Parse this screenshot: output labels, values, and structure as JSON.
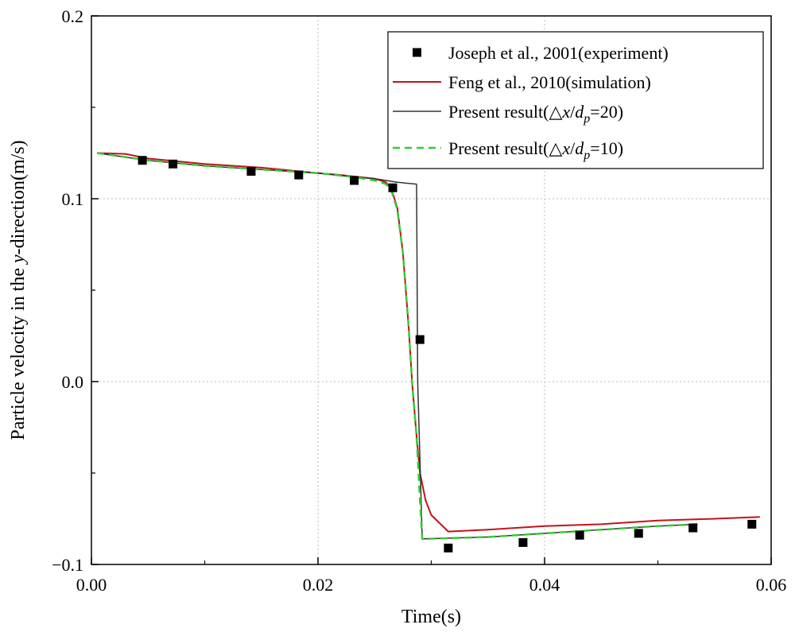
{
  "chart_data": {
    "type": "line",
    "title": "",
    "xlabel": "Time(s)",
    "ylabel": {
      "prefix": "Particle velocity in the ",
      "italic": "y",
      "suffix": "-direction(m/s)"
    },
    "xlim": [
      0.0,
      0.06
    ],
    "ylim": [
      -0.1,
      0.2
    ],
    "xticks": [
      0.0,
      0.02,
      0.04,
      0.06
    ],
    "xtick_labels": [
      "0.00",
      "0.02",
      "0.04",
      "0.06"
    ],
    "yticks": [
      -0.1,
      0.0,
      0.1,
      0.2
    ],
    "ytick_labels": [
      "−0.1",
      "0.0",
      "0.1",
      "0.2"
    ],
    "grid": true,
    "legend_position": "top-right",
    "series": [
      {
        "name": "Joseph et al., 2001(experiment)",
        "legend": {
          "text": "Joseph et al., 2001(experiment)"
        },
        "style": "marker-square",
        "color": "#000000",
        "x": [
          0.0045,
          0.0072,
          0.0141,
          0.0183,
          0.0232,
          0.0266,
          0.029,
          0.0315,
          0.0381,
          0.0431,
          0.0483,
          0.0531,
          0.0583
        ],
        "y": [
          0.121,
          0.119,
          0.115,
          0.113,
          0.11,
          0.106,
          0.023,
          -0.091,
          -0.088,
          -0.084,
          -0.083,
          -0.08,
          -0.078
        ]
      },
      {
        "name": "Feng et al., 2010(simulation)",
        "legend": {
          "text": "Feng et al., 2010(simulation)"
        },
        "style": "line-solid",
        "color": "#c0141c",
        "x": [
          0.0005,
          0.003,
          0.005,
          0.01,
          0.015,
          0.02,
          0.022,
          0.025,
          0.026,
          0.0265,
          0.027,
          0.0275,
          0.028,
          0.0283,
          0.0287,
          0.029,
          0.0295,
          0.03,
          0.0315,
          0.035,
          0.04,
          0.045,
          0.05,
          0.055,
          0.059
        ],
        "y": [
          0.125,
          0.1245,
          0.122,
          0.119,
          0.117,
          0.114,
          0.113,
          0.111,
          0.109,
          0.105,
          0.095,
          0.07,
          0.03,
          0.0,
          -0.03,
          -0.05,
          -0.065,
          -0.073,
          -0.082,
          -0.081,
          -0.079,
          -0.078,
          -0.076,
          -0.075,
          -0.074
        ]
      },
      {
        "name": "Present result(△x/dp=20)",
        "legend": {
          "prefix": "Present result(△",
          "x": "x",
          "slash": "/",
          "d": "d",
          "sub": "p",
          "suffix": "=20)"
        },
        "style": "line-solid",
        "color": "#333333",
        "x": [
          0.0005,
          0.005,
          0.01,
          0.015,
          0.02,
          0.023,
          0.025,
          0.027,
          0.0287,
          0.0288,
          0.0292,
          0.0295,
          0.035,
          0.04,
          0.045,
          0.05,
          0.0535
        ],
        "y": [
          0.125,
          0.121,
          0.118,
          0.116,
          0.114,
          0.112,
          0.111,
          0.109,
          0.108,
          0.0,
          -0.086,
          -0.086,
          -0.085,
          -0.083,
          -0.081,
          -0.079,
          -0.078
        ]
      },
      {
        "name": "Present result(△x/dp=10)",
        "legend": {
          "prefix": "Present result(△",
          "x": "x",
          "slash": "/",
          "d": "d",
          "sub": "p",
          "suffix": "=10)"
        },
        "style": "line-dashed",
        "color": "#33cc33",
        "x": [
          0.0005,
          0.005,
          0.01,
          0.015,
          0.02,
          0.023,
          0.025,
          0.026,
          0.0265,
          0.027,
          0.0275,
          0.028,
          0.0283,
          0.0287,
          0.029,
          0.0292,
          0.0295,
          0.035,
          0.04,
          0.045,
          0.05,
          0.0535
        ],
        "y": [
          0.125,
          0.121,
          0.118,
          0.116,
          0.114,
          0.112,
          0.11,
          0.108,
          0.104,
          0.094,
          0.07,
          0.03,
          0.0,
          -0.03,
          -0.065,
          -0.086,
          -0.086,
          -0.085,
          -0.083,
          -0.081,
          -0.079,
          -0.078
        ]
      }
    ]
  }
}
